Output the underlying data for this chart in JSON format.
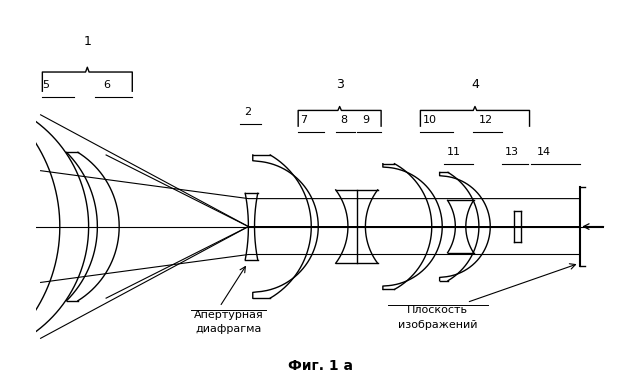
{
  "title": "Фиг. 1 а",
  "bg_color": "#ffffff",
  "text_color": "#000000",
  "figsize": [
    6.4,
    3.92
  ],
  "dpi": 100,
  "xlim": [
    -0.05,
    6.45
  ],
  "ylim": [
    -1.85,
    2.55
  ],
  "optical_axis_y": 0.0,
  "image_plane_x": 6.18,
  "aperture_text1": "Апертурная",
  "aperture_text2": "диафрагма",
  "image_plane_text1": "Плоскость",
  "image_plane_text2": "изображений"
}
